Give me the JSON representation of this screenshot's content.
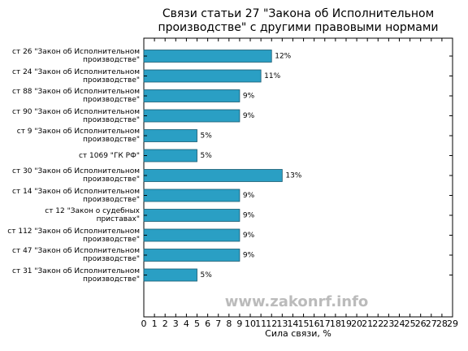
{
  "chart_data": {
    "type": "barh",
    "title": "Связи статьи 27 \"Закона об Исполнительном\nпроизводстве\" с другими правовыми нормами",
    "xlabel": "Сила связи, %",
    "watermark": "www.zakonrf.info",
    "categories": [
      "ст 26 \"Закон об Исполнительном\nпроизводстве\"",
      "ст 24 \"Закон об Исполнительном\nпроизводстве\"",
      "ст 88 \"Закон об Исполнительном\nпроизводстве\"",
      "ст 90 \"Закон об Исполнительном\nпроизводстве\"",
      "ст 9 \"Закон об Исполнительном\nпроизводстве\"",
      "ст 1069 \"ГК РФ\"",
      "ст 30 \"Закон об Исполнительном\nпроизводстве\"",
      "ст 14 \"Закон об Исполнительном\nпроизводстве\"",
      "ст 12 \"Закон о судебных\nприставах\"",
      "ст 112 \"Закон об Исполнительном\nпроизводстве\"",
      "ст 47 \"Закон об Исполнительном\nпроизводстве\"",
      "ст 31 \"Закон об Исполнительном\nпроизводстве\""
    ],
    "values": [
      12,
      11,
      9,
      9,
      5,
      5,
      13,
      9,
      9,
      9,
      9,
      5
    ],
    "value_labels": [
      "12%",
      "11%",
      "9%",
      "9%",
      "5%",
      "5%",
      "13%",
      "9%",
      "9%",
      "9%",
      "9%",
      "5%"
    ],
    "color": "#2a9fc4",
    "xlim": [
      0,
      29
    ],
    "xticks": [
      0,
      1,
      2,
      3,
      4,
      5,
      6,
      7,
      8,
      9,
      10,
      11,
      12,
      13,
      14,
      15,
      16,
      17,
      18,
      19,
      20,
      21,
      22,
      23,
      24,
      25,
      26,
      27,
      28,
      29
    ]
  }
}
